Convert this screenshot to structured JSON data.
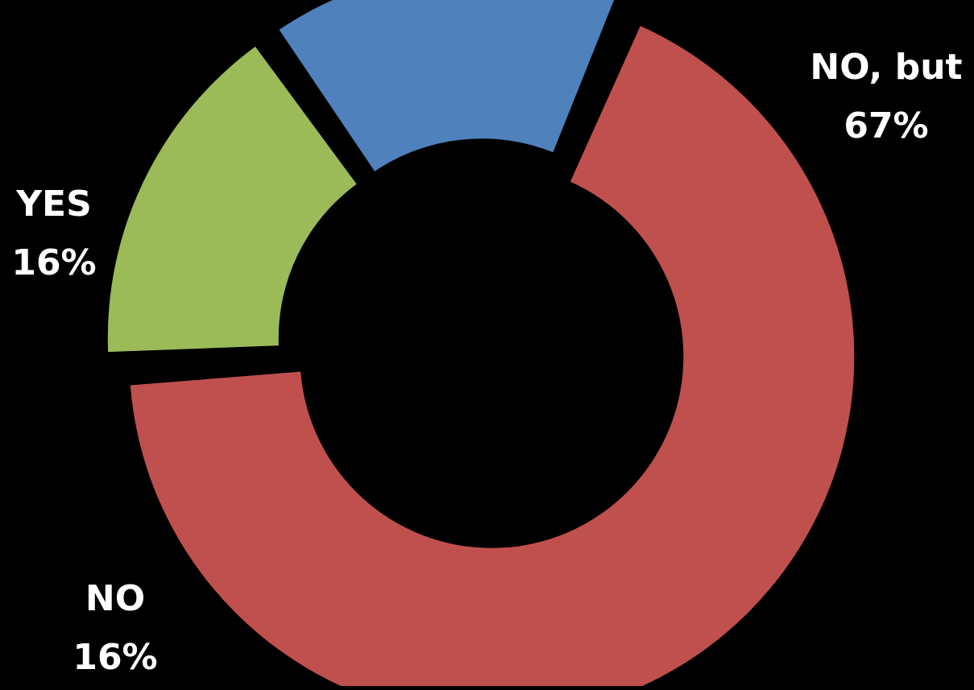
{
  "chart_data": {
    "type": "pie",
    "style": "donut",
    "background": "#000000",
    "label_color": "#ffffff",
    "slices": [
      {
        "label": "NO, but",
        "value": 67,
        "value_label": "67%",
        "color": "#C0504D"
      },
      {
        "label": "NO",
        "value": 16,
        "value_label": "16%",
        "color": "#9BBB59"
      },
      {
        "label": "YES",
        "value": 16,
        "value_label": "16%",
        "color": "#4F81BD"
      }
    ]
  }
}
